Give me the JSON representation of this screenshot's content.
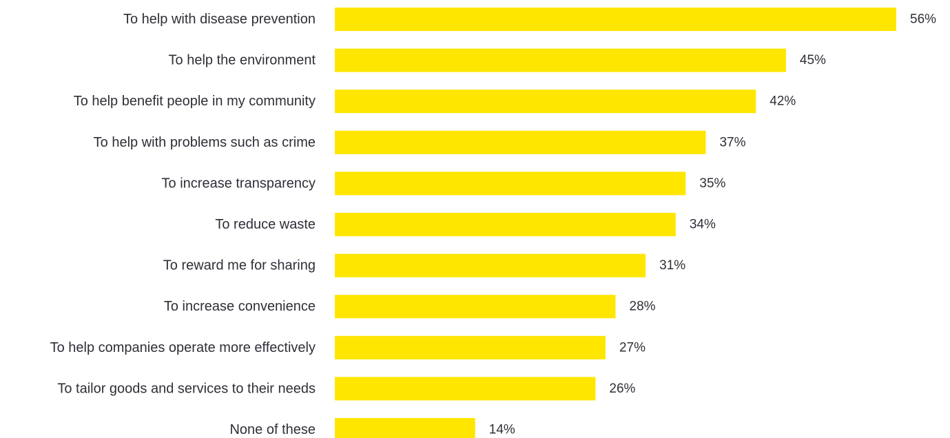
{
  "chart_data": {
    "type": "bar",
    "orientation": "horizontal",
    "categories": [
      "To help with disease prevention",
      "To help the environment",
      "To help benefit people in my community",
      "To help with problems such as crime",
      "To increase transparency",
      "To reduce waste",
      "To reward me for sharing",
      "To increase convenience",
      "To help companies operate more effectively",
      "To tailor goods and services to their needs",
      "None of these"
    ],
    "values": [
      56,
      45,
      42,
      37,
      35,
      34,
      31,
      28,
      27,
      26,
      14
    ],
    "value_labels": [
      "56%",
      "45%",
      "42%",
      "37%",
      "35%",
      "34%",
      "31%",
      "28%",
      "27%",
      "26%",
      "14%"
    ],
    "xlim": [
      0,
      56
    ],
    "grid": false,
    "legend": "none",
    "bar_color": "#FFE600",
    "text_color": "#2E2E38"
  }
}
